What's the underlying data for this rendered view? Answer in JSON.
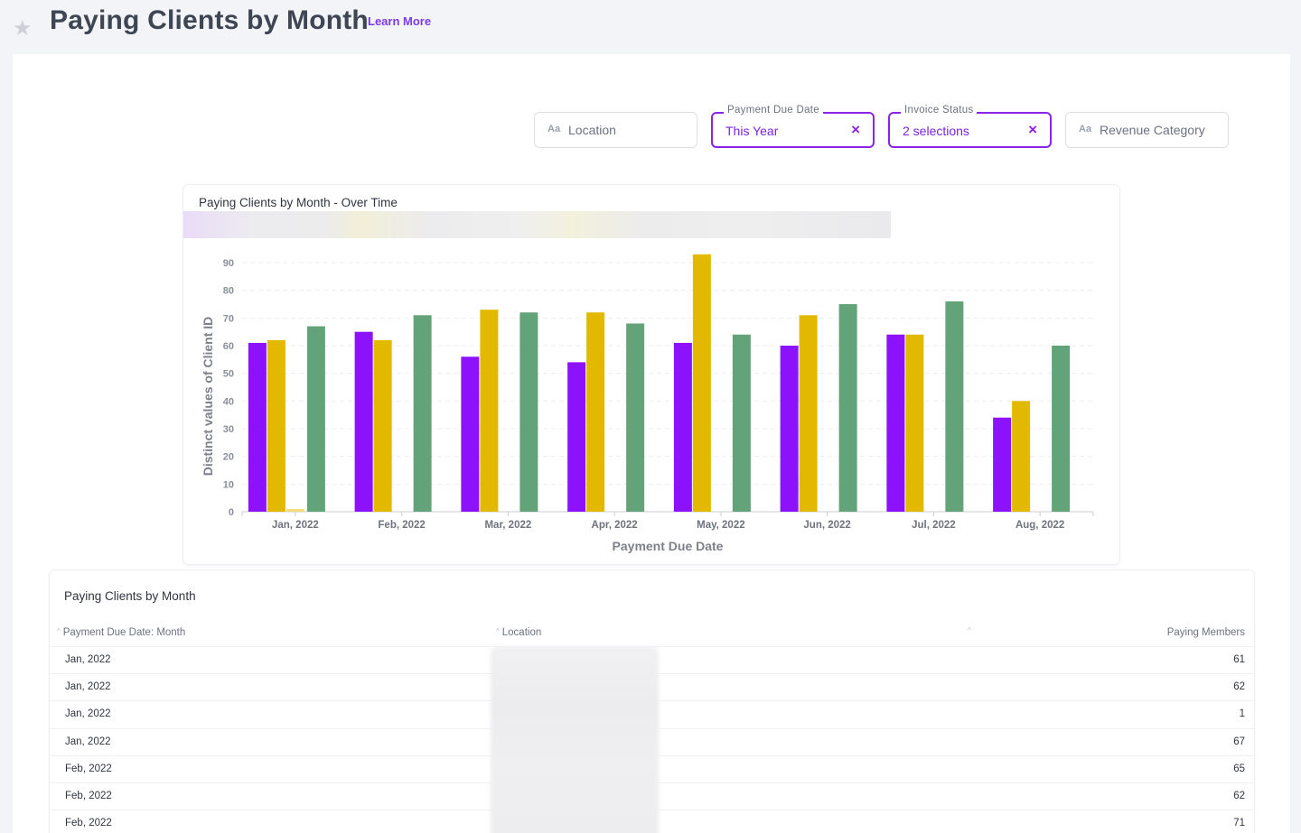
{
  "header": {
    "title": "Paying Clients by Month",
    "learn_more": "Learn More",
    "star_icon": "star-icon"
  },
  "filters": [
    {
      "id": "location",
      "placeholder": "Location",
      "type_badge": "Aa",
      "active": false
    },
    {
      "id": "payment-due-date",
      "label": "Payment Due Date",
      "value": "This Year",
      "active": true,
      "clear": "×"
    },
    {
      "id": "invoice-status",
      "label": "Invoice Status",
      "value": "2 selections",
      "active": true,
      "clear": "×"
    },
    {
      "id": "revenue-category",
      "placeholder": "Revenue Category",
      "type_badge": "Aa",
      "active": false
    }
  ],
  "chart_card": {
    "title": "Paying Clients by Month - Over Time"
  },
  "chart_data": {
    "type": "bar",
    "categories": [
      "Jan, 2022",
      "Feb, 2022",
      "Mar, 2022",
      "Apr, 2022",
      "May, 2022",
      "Jun, 2022",
      "Jul, 2022",
      "Aug, 2022"
    ],
    "series": [
      {
        "color": "#8b12fb",
        "values": [
          61,
          65,
          56,
          54,
          61,
          60,
          64,
          34
        ]
      },
      {
        "color": "#e3b900",
        "values": [
          62,
          62,
          73,
          72,
          93,
          71,
          64,
          40
        ]
      },
      {
        "color": "#f5dc7a",
        "values": [
          1,
          null,
          null,
          null,
          null,
          null,
          null,
          null
        ]
      },
      {
        "color": "#63a37a",
        "values": [
          67,
          71,
          72,
          68,
          64,
          75,
          76,
          60
        ]
      }
    ],
    "xlabel": "Payment Due Date",
    "ylabel": "Distinct values of Client ID",
    "ylim": [
      0,
      90
    ],
    "yticks": [
      0,
      10,
      20,
      30,
      40,
      50,
      60,
      70,
      80,
      90
    ],
    "grid": true,
    "legend": "top"
  },
  "table": {
    "title": "Paying Clients by Month",
    "columns": [
      "Payment Due Date: Month",
      "Location",
      "Paying Members"
    ],
    "rows": [
      {
        "month": "Jan, 2022",
        "members": "61"
      },
      {
        "month": "Jan, 2022",
        "members": "62"
      },
      {
        "month": "Jan, 2022",
        "members": "1"
      },
      {
        "month": "Jan, 2022",
        "members": "67"
      },
      {
        "month": "Feb, 2022",
        "members": "65"
      },
      {
        "month": "Feb, 2022",
        "members": "62"
      },
      {
        "month": "Feb, 2022",
        "members": "71"
      }
    ]
  }
}
